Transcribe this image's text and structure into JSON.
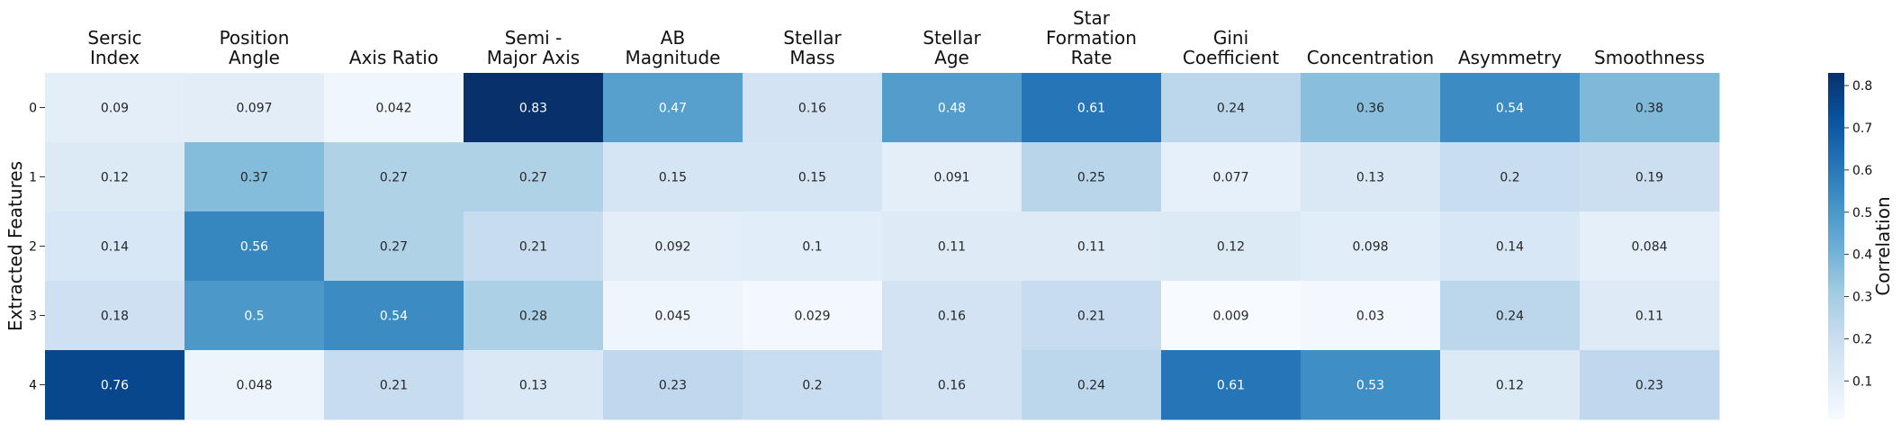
{
  "chart_data": {
    "type": "heatmap",
    "title": "",
    "xlabel": "",
    "ylabel": "Extracted Features",
    "columns": [
      [
        "Sersic",
        "Index"
      ],
      [
        "Position",
        "Angle"
      ],
      [
        "Axis Ratio"
      ],
      [
        "Semi -",
        "Major Axis"
      ],
      [
        "AB",
        "Magnitude"
      ],
      [
        "Stellar",
        "Mass"
      ],
      [
        "Stellar",
        "Age"
      ],
      [
        "Star",
        "Formation",
        "Rate"
      ],
      [
        "Gini",
        "Coefficient"
      ],
      [
        "Concentration"
      ],
      [
        "Asymmetry"
      ],
      [
        "Smoothness"
      ]
    ],
    "rows": [
      "0",
      "1",
      "2",
      "3",
      "4"
    ],
    "values": [
      [
        0.09,
        0.097,
        0.042,
        0.83,
        0.47,
        0.16,
        0.48,
        0.61,
        0.24,
        0.36,
        0.54,
        0.38
      ],
      [
        0.12,
        0.37,
        0.27,
        0.27,
        0.15,
        0.15,
        0.091,
        0.25,
        0.077,
        0.13,
        0.2,
        0.19
      ],
      [
        0.14,
        0.56,
        0.27,
        0.21,
        0.092,
        0.1,
        0.11,
        0.11,
        0.12,
        0.098,
        0.14,
        0.084
      ],
      [
        0.18,
        0.5,
        0.54,
        0.28,
        0.045,
        0.029,
        0.16,
        0.21,
        0.009,
        0.03,
        0.24,
        0.11
      ],
      [
        0.76,
        0.048,
        0.21,
        0.13,
        0.23,
        0.2,
        0.16,
        0.24,
        0.61,
        0.53,
        0.12,
        0.23
      ]
    ],
    "colorbar": {
      "label": "Correlation",
      "range": [
        0.009,
        0.83
      ],
      "ticks": [
        0.1,
        0.2,
        0.3,
        0.4,
        0.5,
        0.6,
        0.7,
        0.8
      ],
      "colormap": "Blues"
    },
    "grid": false,
    "legend_position": "right"
  }
}
